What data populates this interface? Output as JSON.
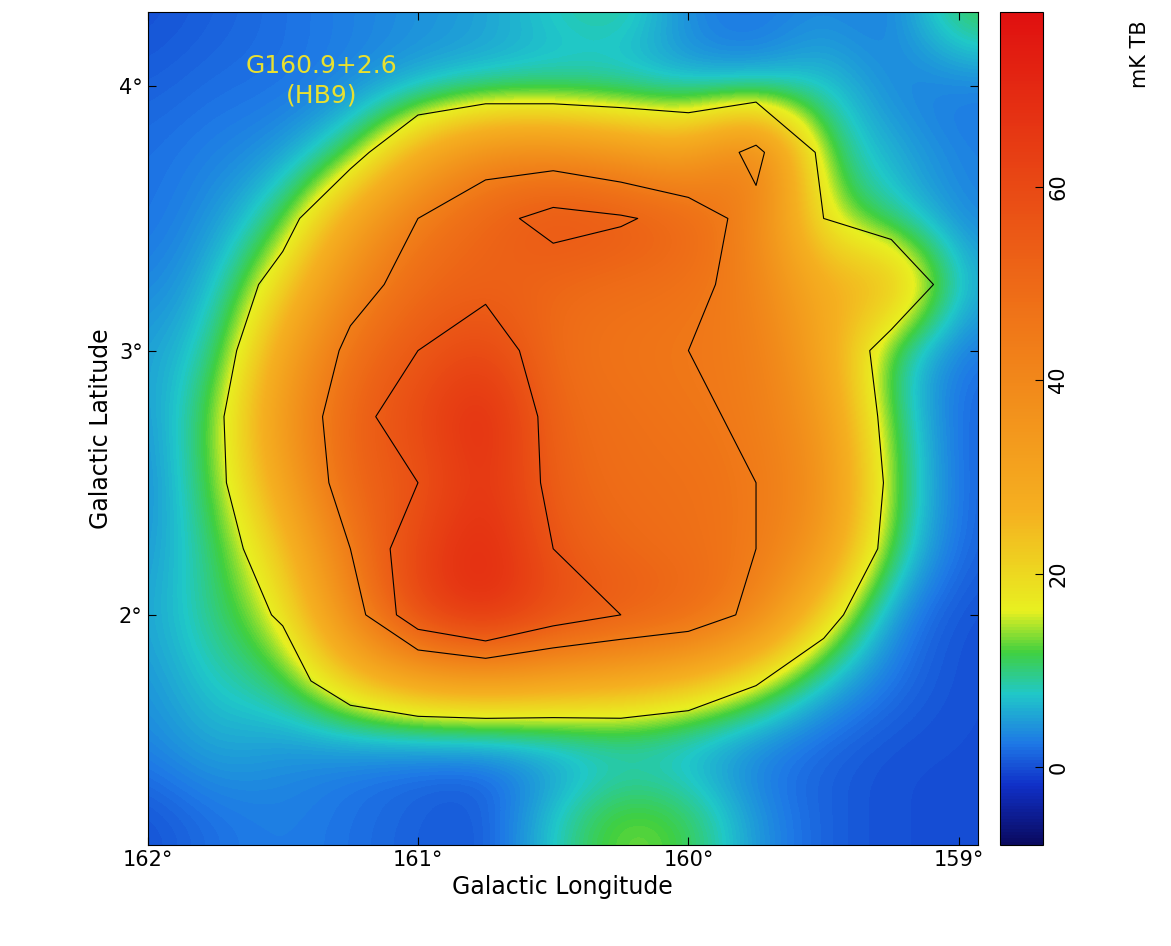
{
  "chart_data": {
    "type": "heatmap",
    "annotation": [
      "G160.9+2.6",
      "(HB9)"
    ],
    "x_label": "Galactic Longitude",
    "y_label": "Galactic Latitude",
    "x": [
      162.0,
      161.75,
      161.5,
      161.25,
      161.0,
      160.75,
      160.5,
      160.25,
      160.0,
      159.75,
      159.5,
      159.25,
      159.0
    ],
    "y": [
      1.25,
      1.5,
      1.75,
      2.0,
      2.25,
      2.5,
      2.75,
      3.0,
      3.25,
      3.5,
      3.75,
      4.0,
      4.25
    ],
    "cells": [
      [
        0,
        2,
        3,
        2,
        1,
        0,
        8,
        14,
        12,
        4,
        1,
        0,
        0
      ],
      [
        3,
        6,
        4,
        3,
        2,
        2,
        3,
        5,
        4,
        2,
        1,
        0,
        0
      ],
      [
        4,
        8,
        10,
        22,
        30,
        32,
        30,
        28,
        24,
        16,
        6,
        2,
        0
      ],
      [
        5,
        10,
        16,
        40,
        62,
        70,
        60,
        55,
        52,
        42,
        20,
        3,
        0
      ],
      [
        4,
        10,
        22,
        45,
        62,
        72,
        55,
        50,
        48,
        45,
        35,
        10,
        1
      ],
      [
        3,
        12,
        30,
        52,
        55,
        68,
        52,
        48,
        48,
        45,
        38,
        12,
        1
      ],
      [
        4,
        12,
        35,
        52,
        60,
        72,
        50,
        48,
        46,
        44,
        35,
        10,
        1
      ],
      [
        5,
        8,
        30,
        48,
        55,
        62,
        48,
        46,
        45,
        44,
        30,
        8,
        2
      ],
      [
        3,
        6,
        20,
        40,
        50,
        52,
        50,
        48,
        47,
        42,
        26,
        30,
        6
      ],
      [
        2,
        4,
        10,
        30,
        45,
        52,
        58,
        56,
        52,
        40,
        15,
        8,
        3
      ],
      [
        2,
        3,
        4,
        10,
        28,
        40,
        40,
        36,
        30,
        50,
        10,
        6,
        3
      ],
      [
        1,
        2,
        2,
        3,
        5,
        6,
        6,
        5,
        5,
        4,
        8,
        3,
        2
      ],
      [
        0,
        1,
        2,
        3,
        4,
        5,
        8,
        10,
        3,
        2,
        4,
        2,
        12
      ]
    ],
    "contour_levels": [
      15,
      45,
      55
    ],
    "xlim": [
      162.0,
      158.93
    ],
    "ylim": [
      1.13,
      4.28
    ],
    "xticks": [
      {
        "value": 162,
        "label": "162°"
      },
      {
        "value": 161,
        "label": "161°"
      },
      {
        "value": 160,
        "label": "160°"
      },
      {
        "value": 159,
        "label": "159°"
      }
    ],
    "yticks": [
      {
        "value": 2,
        "label": "2°"
      },
      {
        "value": 3,
        "label": "3°"
      },
      {
        "value": 4,
        "label": "4°"
      }
    ],
    "colorbar": {
      "label": "mK TB",
      "range": [
        -8,
        78
      ],
      "ticks": [
        0,
        20,
        40,
        60
      ]
    }
  }
}
